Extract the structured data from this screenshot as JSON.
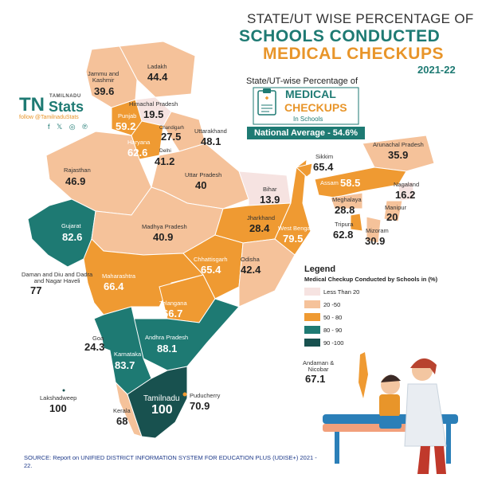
{
  "title": {
    "line1": "STATE/UT WISE PERCENTAGE OF",
    "line2": "SCHOOLS CONDUCTED",
    "line3": "MEDICAL CHECKUPS",
    "year": "2021-22"
  },
  "brand": {
    "logo_small": "TAMILNADU",
    "logo_tn": "TN",
    "logo_stats": "Stats",
    "follow": "follow @TamilnaduStats",
    "socials": "f 𝕏 ◎ ℗"
  },
  "info": {
    "title": "State/UT-wise Percentage of",
    "line1": "MEDICAL",
    "line2": "CHECKUPS",
    "line3": "In Schools",
    "national_average": "National Average - 54.6%"
  },
  "legend": {
    "title": "Legend",
    "subtitle": "Medical Checkup Conducted by Schools in (%)",
    "items": [
      {
        "label": "Less Than 20",
        "color": "#f6e3e1"
      },
      {
        "label": "20 -50",
        "color": "#f5c29a"
      },
      {
        "label": "50 - 80",
        "color": "#ef9a32"
      },
      {
        "label": "80 - 90",
        "color": "#1e7a73"
      },
      {
        "label": "90 -100",
        "color": "#18514f"
      }
    ]
  },
  "states": {
    "ladakh": {
      "name": "Ladakh",
      "value": "44.4"
    },
    "jk": {
      "name": "Jammu and\nKashmir",
      "value": "39.6"
    },
    "hp": {
      "name": "Himachal Pradesh",
      "value": "19.5"
    },
    "punjab": {
      "name": "Punjab",
      "value": "59.2"
    },
    "chandigarh": {
      "name": "Chandigarh",
      "value": "27.5"
    },
    "uttarakhand": {
      "name": "Uttarakhand",
      "value": "48.1"
    },
    "haryana": {
      "name": "Haryana",
      "value": "62.6"
    },
    "delhi": {
      "name": "Delhi",
      "value": "41.2"
    },
    "rajasthan": {
      "name": "Rajasthan",
      "value": "46.9"
    },
    "up": {
      "name": "Uttar Pradesh",
      "value": "40"
    },
    "bihar": {
      "name": "Bihar",
      "value": "13.9"
    },
    "sikkim": {
      "name": "Sikkim",
      "value": "65.4"
    },
    "arunachal": {
      "name": "Arunachal Pradesh",
      "value": "35.9"
    },
    "assam": {
      "name": "Assam",
      "value": "58.5"
    },
    "nagaland": {
      "name": "Nagaland",
      "value": "16.2"
    },
    "meghalaya": {
      "name": "Meghalaya",
      "value": "28.8"
    },
    "manipur": {
      "name": "Manipur",
      "value": "20"
    },
    "tripura": {
      "name": "Tripura",
      "value": "62.8"
    },
    "mizoram": {
      "name": "Mizoram",
      "value": "30.9"
    },
    "jharkhand": {
      "name": "Jharkhand",
      "value": "28.4"
    },
    "wb": {
      "name": "West Bengal",
      "value": "79.5"
    },
    "gujarat": {
      "name": "Gujarat",
      "value": "82.6"
    },
    "mp": {
      "name": "Madhya Pradesh",
      "value": "40.9"
    },
    "chhattisgarh": {
      "name": "Chhattisgarh",
      "value": "65.4"
    },
    "odisha": {
      "name": "Odisha",
      "value": "42.4"
    },
    "dnh": {
      "name": "Daman and Diu and Dadra\nand Nagar Haveli",
      "value": "77"
    },
    "maharashtra": {
      "name": "Maharashtra",
      "value": "66.4"
    },
    "telangana": {
      "name": "Telangana",
      "value": "66.7"
    },
    "goa": {
      "name": "Goa",
      "value": "24.3"
    },
    "ap": {
      "name": "Andhra Pradesh",
      "value": "88.1"
    },
    "karnataka": {
      "name": "Karnataka",
      "value": "83.7"
    },
    "lakshadweep": {
      "name": "Lakshadweep",
      "value": "100"
    },
    "kerala": {
      "name": "Kerala",
      "value": "68"
    },
    "tamilnadu": {
      "name": "Tamilnadu",
      "value": "100"
    },
    "puducherry": {
      "name": "Puducherry",
      "value": "70.9"
    },
    "andaman": {
      "name": "Andaman &\nNicobar",
      "value": "67.1"
    }
  },
  "source": "SOURCE:  Report on UNIFIED DISTRICT INFORMATION SYSTEM FOR EDUCATION PLUS (UDISE+)  2021 - 22."
}
